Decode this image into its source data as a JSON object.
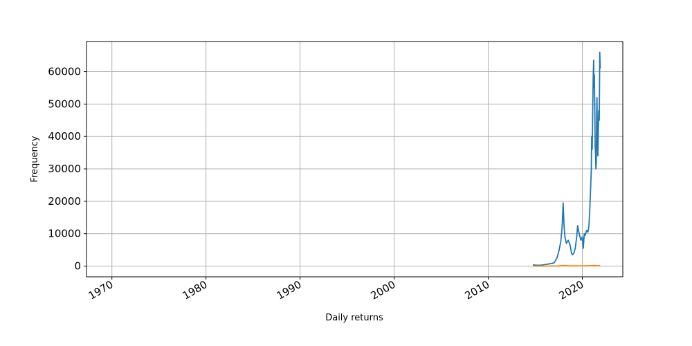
{
  "chart_data": {
    "type": "line",
    "title": "",
    "xlabel": "Daily returns",
    "ylabel": "Frequency",
    "xlim": [
      1967.3,
      2024.3
    ],
    "ylim": [
      -3300,
      69300
    ],
    "grid": true,
    "legend": "none",
    "x_ticks": [
      1970,
      1980,
      1990,
      2000,
      2010,
      2020
    ],
    "x_tick_labels": [
      "1970",
      "1980",
      "1990",
      "2000",
      "2010",
      "2020"
    ],
    "y_ticks": [
      0,
      10000,
      20000,
      30000,
      40000,
      50000,
      60000
    ],
    "y_tick_labels": [
      "0",
      "10000",
      "20000",
      "30000",
      "40000",
      "50000",
      "60000"
    ],
    "series": [
      {
        "color": "#1f77b4",
        "x": [
          2014.75,
          2015.0,
          2015.5,
          2016.0,
          2016.5,
          2017.0,
          2017.3,
          2017.5,
          2017.7,
          2017.85,
          2017.96,
          2018.05,
          2018.15,
          2018.3,
          2018.5,
          2018.7,
          2018.85,
          2018.95,
          2019.1,
          2019.25,
          2019.4,
          2019.5,
          2019.6,
          2019.7,
          2019.85,
          2020.0,
          2020.1,
          2020.2,
          2020.3,
          2020.45,
          2020.6,
          2020.7,
          2020.8,
          2020.88,
          2020.95,
          2021.0,
          2021.05,
          2021.1,
          2021.15,
          2021.2,
          2021.25,
          2021.28,
          2021.32,
          2021.36,
          2021.4,
          2021.44,
          2021.48,
          2021.52,
          2021.56,
          2021.6,
          2021.65,
          2021.7,
          2021.75,
          2021.8,
          2021.85,
          2021.9
        ],
        "y": [
          400,
          300,
          250,
          450,
          700,
          1000,
          2500,
          4500,
          7500,
          12000,
          19500,
          13000,
          9000,
          7000,
          8000,
          6500,
          4000,
          3500,
          4000,
          5500,
          9000,
          12500,
          11000,
          9500,
          8000,
          9000,
          5500,
          10000,
          9500,
          11000,
          10500,
          12500,
          18000,
          24000,
          30000,
          40000,
          36000,
          47000,
          58000,
          63500,
          55000,
          59000,
          50000,
          37000,
          35000,
          30000,
          32000,
          46000,
          52000,
          40000,
          34000,
          42000,
          48000,
          45000,
          66000,
          61000
        ]
      },
      {
        "color": "#ff7f0e",
        "x": [
          2014.75,
          2015.5,
          2016.5,
          2017.5,
          2017.96,
          2018.5,
          2019.5,
          2020.5,
          2021.0,
          2021.3,
          2021.6,
          2021.9
        ],
        "y": [
          10,
          5,
          10,
          60,
          180,
          60,
          90,
          80,
          130,
          150,
          120,
          140
        ]
      }
    ]
  }
}
